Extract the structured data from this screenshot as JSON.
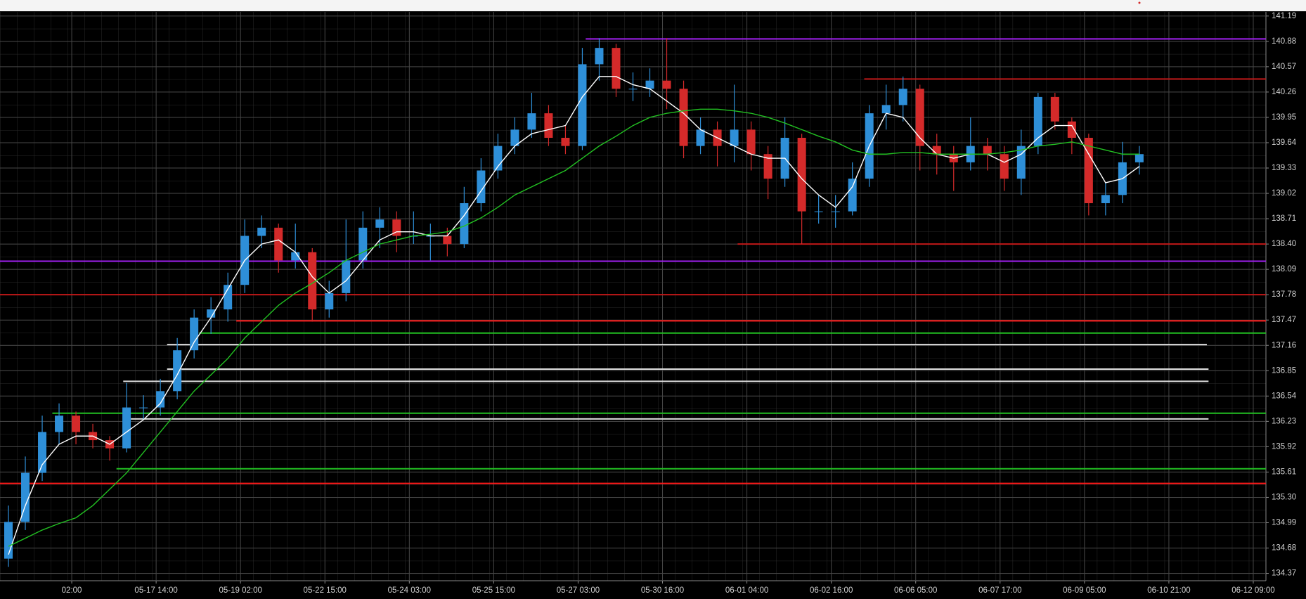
{
  "chart_data": {
    "type": "candlestick",
    "up_color": "#2e8fd8",
    "down_color": "#d42a2a",
    "grid": true,
    "xlim": [
      0,
      75
    ],
    "ylim": [
      134.28,
      141.24
    ],
    "xticks": [
      {
        "value": 4.25,
        "label": "02:00"
      },
      {
        "value": 9.25,
        "label": "05-17 14:00"
      },
      {
        "value": 14.25,
        "label": "05-19 02:00"
      },
      {
        "value": 19.25,
        "label": "05-22 15:00"
      },
      {
        "value": 24.25,
        "label": "05-24 03:00"
      },
      {
        "value": 29.25,
        "label": "05-25 15:00"
      },
      {
        "value": 34.25,
        "label": "05-27 03:00"
      },
      {
        "value": 39.25,
        "label": "05-30 16:00"
      },
      {
        "value": 44.25,
        "label": "06-01 04:00"
      },
      {
        "value": 49.25,
        "label": "06-02 16:00"
      },
      {
        "value": 54.25,
        "label": "06-06 05:00"
      },
      {
        "value": 59.25,
        "label": "06-07 17:00"
      },
      {
        "value": 64.25,
        "label": "06-09 05:00"
      },
      {
        "value": 69.25,
        "label": "06-10 21:00"
      },
      {
        "value": 74.25,
        "label": "06-12 09:00"
      }
    ],
    "yticks": [
      141.19,
      140.88,
      140.57,
      140.26,
      139.95,
      139.64,
      139.33,
      139.02,
      138.71,
      {
        "value": 138.4,
        "label": "138.40"
      },
      138.09,
      137.78,
      137.47,
      137.16,
      136.85,
      136.54,
      136.23,
      135.92,
      135.61,
      {
        "value": 135.3,
        "label": "135.30"
      },
      134.99,
      134.68,
      134.37
    ],
    "ohlc": [
      [
        134.55,
        135.2,
        134.45,
        135.0
      ],
      [
        135.0,
        135.8,
        134.9,
        135.6
      ],
      [
        135.6,
        136.3,
        135.5,
        136.1
      ],
      [
        136.1,
        136.45,
        135.95,
        136.3
      ],
      [
        136.3,
        136.35,
        135.95,
        136.1
      ],
      [
        136.1,
        136.2,
        135.9,
        136.0
      ],
      [
        136.0,
        136.05,
        135.75,
        135.9
      ],
      [
        135.9,
        136.7,
        135.85,
        136.4
      ],
      [
        136.4,
        136.55,
        136.25,
        136.4
      ],
      [
        136.4,
        136.75,
        136.3,
        136.6
      ],
      [
        136.6,
        137.25,
        136.5,
        137.1
      ],
      [
        137.1,
        137.6,
        137.0,
        137.5
      ],
      [
        137.5,
        137.75,
        137.3,
        137.6
      ],
      [
        137.6,
        138.05,
        137.45,
        137.9
      ],
      [
        137.9,
        138.7,
        137.8,
        138.5
      ],
      [
        138.5,
        138.75,
        138.35,
        138.6
      ],
      [
        138.6,
        138.65,
        138.05,
        138.2
      ],
      [
        138.2,
        138.65,
        138.1,
        138.3
      ],
      [
        138.3,
        138.35,
        137.45,
        137.6
      ],
      [
        137.6,
        137.95,
        137.5,
        137.8
      ],
      [
        137.8,
        138.7,
        137.7,
        138.2
      ],
      [
        138.2,
        138.8,
        138.1,
        138.6
      ],
      [
        138.6,
        138.85,
        138.35,
        138.7
      ],
      [
        138.7,
        138.8,
        138.3,
        138.5
      ],
      [
        138.5,
        138.8,
        138.4,
        138.5
      ],
      [
        138.5,
        138.65,
        138.2,
        138.5
      ],
      [
        138.5,
        138.6,
        138.25,
        138.4
      ],
      [
        138.4,
        139.1,
        138.35,
        138.9
      ],
      [
        138.9,
        139.45,
        138.8,
        139.3
      ],
      [
        139.3,
        139.75,
        139.2,
        139.6
      ],
      [
        139.6,
        139.95,
        139.5,
        139.8
      ],
      [
        139.8,
        140.25,
        139.7,
        140.0
      ],
      [
        140.0,
        140.1,
        139.6,
        139.7
      ],
      [
        139.7,
        139.85,
        139.5,
        139.6
      ],
      [
        139.6,
        140.8,
        139.55,
        140.6
      ],
      [
        140.6,
        140.92,
        140.4,
        140.8
      ],
      [
        140.8,
        140.85,
        140.2,
        140.3
      ],
      [
        140.3,
        140.5,
        140.15,
        140.3
      ],
      [
        140.3,
        140.55,
        140.2,
        140.4
      ],
      [
        140.4,
        140.92,
        140.05,
        140.3
      ],
      [
        140.3,
        140.4,
        139.45,
        139.6
      ],
      [
        139.6,
        139.95,
        139.5,
        139.8
      ],
      [
        139.8,
        139.9,
        139.35,
        139.6
      ],
      [
        139.6,
        140.35,
        139.4,
        139.8
      ],
      [
        139.8,
        139.9,
        139.3,
        139.5
      ],
      [
        139.5,
        139.6,
        138.95,
        139.2
      ],
      [
        139.2,
        139.95,
        139.1,
        139.7
      ],
      [
        139.7,
        139.75,
        138.4,
        138.8
      ],
      [
        138.8,
        139.0,
        138.65,
        138.8
      ],
      [
        138.8,
        139.0,
        138.6,
        138.8
      ],
      [
        138.8,
        139.4,
        138.75,
        139.2
      ],
      [
        139.2,
        140.1,
        139.1,
        140.0
      ],
      [
        140.0,
        140.35,
        139.8,
        140.1
      ],
      [
        140.1,
        140.45,
        139.9,
        140.3
      ],
      [
        140.3,
        140.35,
        139.3,
        139.6
      ],
      [
        139.6,
        139.75,
        139.25,
        139.5
      ],
      [
        139.5,
        139.6,
        139.05,
        139.4
      ],
      [
        139.4,
        139.95,
        139.3,
        139.6
      ],
      [
        139.6,
        139.7,
        139.3,
        139.5
      ],
      [
        139.5,
        139.6,
        139.05,
        139.2
      ],
      [
        139.2,
        139.8,
        139.0,
        139.6
      ],
      [
        139.6,
        140.25,
        139.5,
        140.2
      ],
      [
        140.2,
        140.25,
        139.8,
        139.9
      ],
      [
        139.9,
        139.95,
        139.5,
        139.7
      ],
      [
        139.7,
        139.75,
        138.75,
        138.9
      ],
      [
        138.9,
        139.15,
        138.75,
        139.0
      ],
      [
        139.0,
        139.65,
        138.9,
        139.4
      ],
      [
        139.4,
        139.6,
        139.25,
        139.5
      ]
    ],
    "series": [
      {
        "color": "#ffffff",
        "values": [
          134.6,
          135.2,
          135.7,
          135.95,
          136.05,
          136.05,
          135.95,
          136.1,
          136.25,
          136.45,
          136.8,
          137.2,
          137.5,
          137.85,
          138.2,
          138.4,
          138.45,
          138.3,
          138.0,
          137.8,
          137.95,
          138.2,
          138.45,
          138.55,
          138.55,
          138.5,
          138.5,
          138.75,
          139.05,
          139.35,
          139.6,
          139.75,
          139.8,
          139.85,
          140.2,
          140.45,
          140.45,
          140.35,
          140.3,
          140.15,
          140.0,
          139.8,
          139.7,
          139.6,
          139.5,
          139.45,
          139.45,
          139.2,
          139.0,
          138.85,
          139.1,
          139.6,
          140.0,
          139.95,
          139.7,
          139.5,
          139.45,
          139.5,
          139.5,
          139.4,
          139.5,
          139.7,
          139.85,
          139.85,
          139.5,
          139.15,
          139.2,
          139.35
        ]
      },
      {
        "color": "#22c022",
        "values": [
          134.7,
          134.8,
          134.9,
          134.98,
          135.05,
          135.2,
          135.4,
          135.6,
          135.85,
          136.1,
          136.35,
          136.6,
          136.8,
          137.0,
          137.25,
          137.45,
          137.65,
          137.8,
          137.92,
          138.05,
          138.2,
          138.3,
          138.4,
          138.45,
          138.5,
          138.52,
          138.55,
          138.62,
          138.72,
          138.85,
          139.0,
          139.1,
          139.2,
          139.3,
          139.45,
          139.6,
          139.72,
          139.85,
          139.95,
          140.0,
          140.03,
          140.05,
          140.05,
          140.03,
          140.0,
          139.95,
          139.88,
          139.8,
          139.72,
          139.65,
          139.55,
          139.5,
          139.5,
          139.52,
          139.52,
          139.5,
          139.5,
          139.5,
          139.5,
          139.52,
          139.55,
          139.6,
          139.62,
          139.65,
          139.6,
          139.55,
          139.5,
          139.5
        ]
      }
    ],
    "levels": [
      {
        "value": 140.91,
        "from": 34.7,
        "to": 75,
        "color": "#a020f0"
      },
      {
        "value": 140.42,
        "from": 51.2,
        "to": 75,
        "color": "#c01818"
      },
      {
        "value": 138.4,
        "from": 43.7,
        "to": 75,
        "color": "#c01818"
      },
      {
        "value": 138.19,
        "from": 0,
        "to": 75,
        "color": "#a020f0"
      },
      {
        "value": 137.78,
        "from": 0,
        "to": 75,
        "color": "#c01818"
      },
      {
        "value": 137.46,
        "from": 14.0,
        "to": 75,
        "color": "#ff1a1a"
      },
      {
        "value": 137.31,
        "from": 11.8,
        "to": 75,
        "color": "#22c022"
      },
      {
        "value": 137.17,
        "from": 9.9,
        "to": 71.5,
        "color": "#dddddd"
      },
      {
        "value": 136.87,
        "from": 9.9,
        "to": 71.6,
        "color": "#dddddd"
      },
      {
        "value": 136.72,
        "from": 7.3,
        "to": 71.6,
        "color": "#dddddd"
      },
      {
        "value": 136.33,
        "from": 3.1,
        "to": 75,
        "color": "#22c022"
      },
      {
        "value": 136.26,
        "from": 7.75,
        "to": 71.6,
        "color": "#dddddd"
      },
      {
        "value": 135.65,
        "from": 6.9,
        "to": 75,
        "color": "#22c022"
      },
      {
        "value": 135.47,
        "from": 0,
        "to": 75,
        "color": "#ff1a1a"
      }
    ]
  }
}
